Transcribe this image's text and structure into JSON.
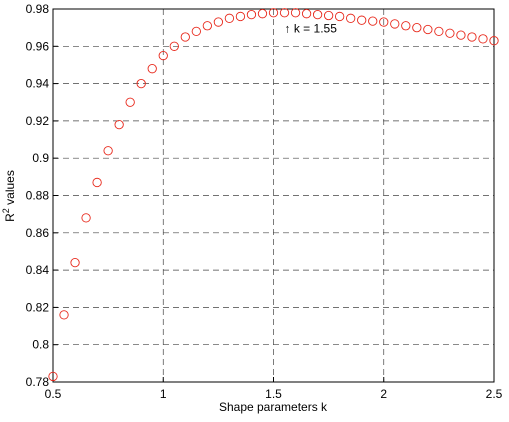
{
  "chart_data": {
    "type": "scatter",
    "xlabel": "Shape parameters k",
    "ylabel": [
      "R",
      "2",
      " values"
    ],
    "annotation": {
      "text": "↑ k = 1.55",
      "x": 1.55,
      "y": 0.97
    },
    "x": [
      0.5,
      0.55,
      0.6,
      0.65,
      0.7,
      0.75,
      0.8,
      0.85,
      0.9,
      0.95,
      1.0,
      1.05,
      1.1,
      1.15,
      1.2,
      1.25,
      1.3,
      1.35,
      1.4,
      1.45,
      1.5,
      1.55,
      1.6,
      1.65,
      1.7,
      1.75,
      1.8,
      1.85,
      1.9,
      1.95,
      2.0,
      2.05,
      2.1,
      2.15,
      2.2,
      2.25,
      2.3,
      2.35,
      2.4,
      2.45,
      2.5
    ],
    "series": [
      {
        "color": "#e8291c",
        "values": [
          0.783,
          0.816,
          0.844,
          0.868,
          0.887,
          0.904,
          0.918,
          0.93,
          0.94,
          0.948,
          0.955,
          0.96,
          0.965,
          0.968,
          0.971,
          0.973,
          0.975,
          0.976,
          0.977,
          0.9775,
          0.978,
          0.978,
          0.978,
          0.9775,
          0.977,
          0.9765,
          0.976,
          0.975,
          0.974,
          0.9735,
          0.973,
          0.972,
          0.971,
          0.97,
          0.969,
          0.968,
          0.967,
          0.966,
          0.965,
          0.964,
          0.963
        ]
      }
    ],
    "xlim": [
      0.5,
      2.5
    ],
    "xticks": [
      0.5,
      1,
      1.5,
      2,
      2.5
    ],
    "ylim": [
      0.78,
      0.98
    ],
    "yticks": [
      0.78,
      0.8,
      0.82,
      0.84,
      0.86,
      0.88,
      0.9,
      0.92,
      0.94,
      0.96,
      0.98
    ],
    "grid": true
  }
}
